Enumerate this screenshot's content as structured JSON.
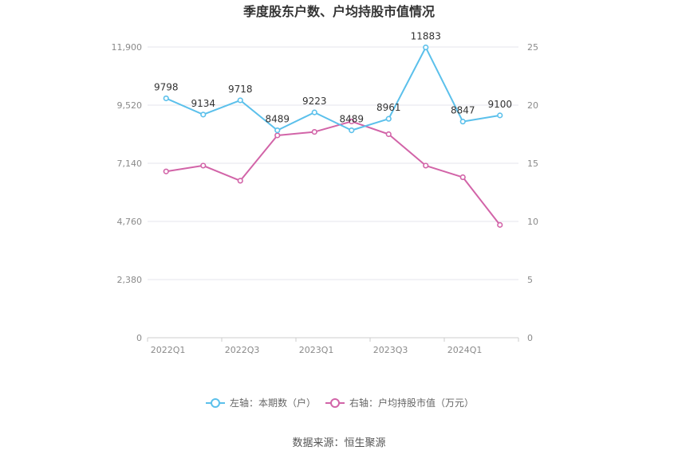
{
  "title": "季度股东户数、户均持股市值情况",
  "source": "数据来源：恒生聚源",
  "chart_data": {
    "type": "line",
    "categories": [
      "2022Q1",
      "2022Q2",
      "2022Q3",
      "2022Q4",
      "2023Q1",
      "2023Q2",
      "2023Q3",
      "2023Q4",
      "2024Q1",
      "2024Q2"
    ],
    "x_tick_labels": [
      "2022Q1",
      "2022Q3",
      "2023Q1",
      "2023Q3",
      "2024Q1"
    ],
    "y_left": {
      "min": 0,
      "max": 11900,
      "ticks": [
        "0",
        "2,380",
        "4,760",
        "7,140",
        "9,520",
        "11,900"
      ]
    },
    "y_right": {
      "min": 0,
      "max": 25,
      "ticks": [
        "0",
        "5",
        "10",
        "15",
        "20",
        "25"
      ]
    },
    "series": [
      {
        "name": "左轴：本期数（户）",
        "axis": "left",
        "color": "#5bc0eb",
        "values": [
          9798,
          9134,
          9718,
          8489,
          9223,
          8489,
          8961,
          11883,
          8847,
          9100
        ],
        "labels": [
          "9798",
          "9134",
          "9718",
          "8489",
          "9223",
          "8489",
          "8961",
          "11883",
          "8847",
          "9100"
        ]
      },
      {
        "name": "右轴：户均持股市值（万元）",
        "axis": "right",
        "color": "#d264a8",
        "values": [
          14.3,
          14.8,
          13.5,
          17.4,
          17.7,
          18.6,
          17.5,
          14.8,
          13.8,
          9.7
        ]
      }
    ],
    "grid": true,
    "legend_position": "bottom"
  }
}
